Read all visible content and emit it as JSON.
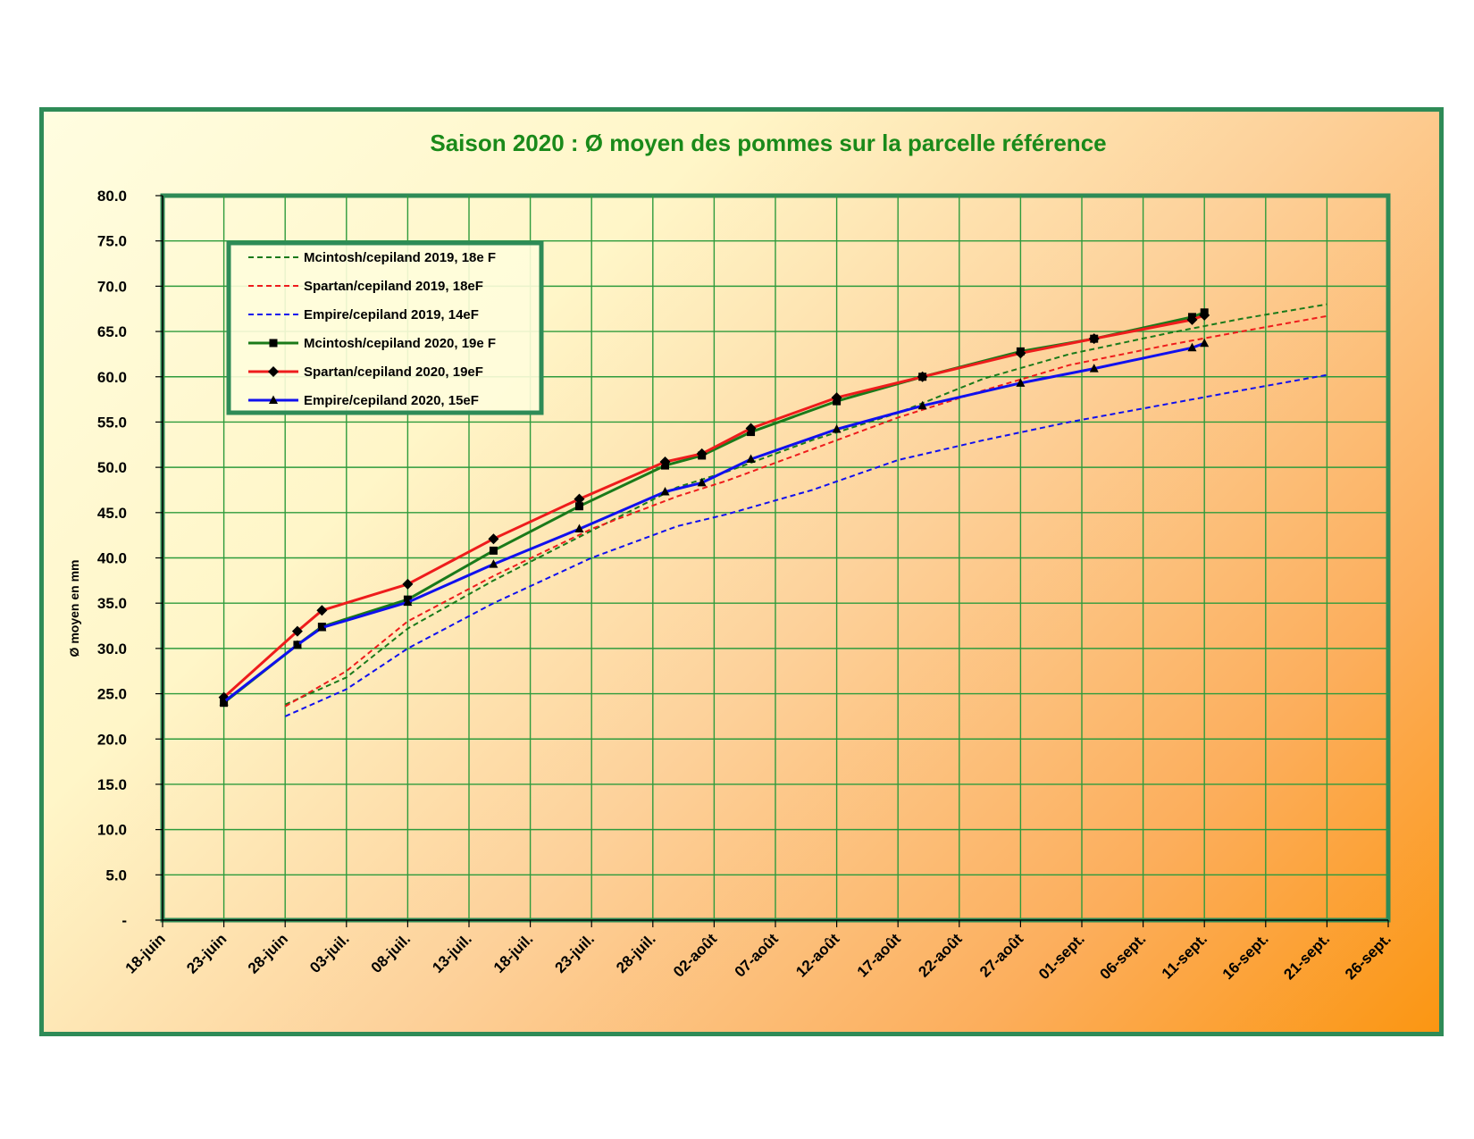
{
  "chart_data": {
    "type": "line",
    "title": "Saison 2020 : Ø moyen des pommes sur la parcelle référence",
    "ylabel": "Ø moyen en mm",
    "xlabel": "",
    "ylim": [
      0,
      80
    ],
    "y_ticks": [
      "-",
      "5.0",
      "10.0",
      "15.0",
      "20.0",
      "25.0",
      "30.0",
      "35.0",
      "40.0",
      "45.0",
      "50.0",
      "55.0",
      "60.0",
      "65.0",
      "70.0",
      "75.0",
      "80.0"
    ],
    "x_ticks": [
      "18-juin",
      "23-juin",
      "28-juin",
      "03-juil.",
      "08-juil.",
      "13-juil.",
      "18-juil.",
      "23-juil.",
      "28-juil.",
      "02-août",
      "07-août",
      "12-août",
      "17-août",
      "22-août",
      "27-août",
      "01-sept.",
      "06-sept.",
      "11-sept.",
      "16-sept.",
      "21-sept.",
      "26-sept."
    ],
    "grid": true,
    "legend_position": "top-left",
    "series": [
      {
        "name": "Mcintosh/cepiland 2019, 18e F",
        "color": "#1a7a1a",
        "dash": true,
        "marker": "none",
        "x": [
          "28-juin",
          "03-juil.",
          "08-juil.",
          "15-juil.",
          "23-juil.",
          "30-juil.",
          "03-août",
          "10-août",
          "17-août",
          "24-août",
          "31-août",
          "08-sept.",
          "14-sept.",
          "21-sept."
        ],
        "y": [
          23.8,
          26.8,
          32.2,
          37.5,
          43.0,
          47.8,
          49.5,
          53.0,
          56.0,
          59.8,
          62.5,
          64.8,
          66.4,
          68.0
        ]
      },
      {
        "name": "Spartan/cepiland 2019, 18eF",
        "color": "#ee1c1c",
        "dash": true,
        "marker": "none",
        "x": [
          "28-juin",
          "03-juil.",
          "08-juil.",
          "15-juil.",
          "23-juil.",
          "30-juil.",
          "03-août",
          "10-août",
          "17-août",
          "24-août",
          "31-août",
          "08-sept.",
          "14-sept.",
          "21-sept."
        ],
        "y": [
          23.6,
          27.5,
          33.0,
          38.0,
          43.2,
          46.8,
          48.5,
          52.0,
          55.5,
          58.5,
          61.3,
          63.5,
          65.0,
          66.7
        ]
      },
      {
        "name": "Empire/cepiland 2019, 14eF",
        "color": "#1010ee",
        "dash": true,
        "marker": "none",
        "x": [
          "28-juin",
          "03-juil.",
          "08-juil.",
          "15-juil.",
          "23-juil.",
          "30-juil.",
          "03-août",
          "10-août",
          "17-août",
          "24-août",
          "31-août",
          "08-sept.",
          "14-sept.",
          "21-sept."
        ],
        "y": [
          22.5,
          25.5,
          30.0,
          35.0,
          40.0,
          43.5,
          44.8,
          47.5,
          50.8,
          53.0,
          55.0,
          57.0,
          58.5,
          60.2
        ]
      },
      {
        "name": "Mcintosh/cepiland 2020, 19e F",
        "color": "#1a7a1a",
        "dash": false,
        "marker": "square",
        "x": [
          "23-juin",
          "29-juin",
          "01-juil.",
          "08-juil.",
          "15-juil.",
          "22-juil.",
          "29-juil.",
          "01-août",
          "05-août",
          "12-août",
          "19-août",
          "27-août",
          "02-sept.",
          "10-sept.",
          "11-sept."
        ],
        "y": [
          24.0,
          30.4,
          32.4,
          35.4,
          40.8,
          45.7,
          50.2,
          51.3,
          53.9,
          57.3,
          60.0,
          62.8,
          64.2,
          66.6,
          67.1
        ]
      },
      {
        "name": "Spartan/cepiland 2020, 19eF",
        "color": "#ee1c1c",
        "dash": false,
        "marker": "diamond",
        "x": [
          "23-juin",
          "29-juin",
          "01-juil.",
          "08-juil.",
          "15-juil.",
          "22-juil.",
          "29-juil.",
          "01-août",
          "05-août",
          "12-août",
          "19-août",
          "27-août",
          "02-sept.",
          "10-sept.",
          "11-sept."
        ],
        "y": [
          24.6,
          31.9,
          34.2,
          37.1,
          42.1,
          46.5,
          50.6,
          51.5,
          54.3,
          57.7,
          60.0,
          62.6,
          64.2,
          66.3,
          66.8
        ]
      },
      {
        "name": "Empire/cepiland 2020, 15eF",
        "color": "#1010ee",
        "dash": false,
        "marker": "triangle",
        "x": [
          "23-juin",
          "29-juin",
          "01-juil.",
          "08-juil.",
          "15-juil.",
          "22-juil.",
          "29-juil.",
          "01-août",
          "05-août",
          "12-août",
          "19-août",
          "27-août",
          "02-sept.",
          "10-sept.",
          "11-sept."
        ],
        "y": [
          24.1,
          30.4,
          32.3,
          35.1,
          39.3,
          43.2,
          47.3,
          48.3,
          50.9,
          54.2,
          56.8,
          59.3,
          60.9,
          63.2,
          63.7
        ]
      }
    ]
  },
  "colors": {
    "border": "#2e8b57",
    "grid": "#2e9b3c",
    "title": "#1a8a1a"
  }
}
